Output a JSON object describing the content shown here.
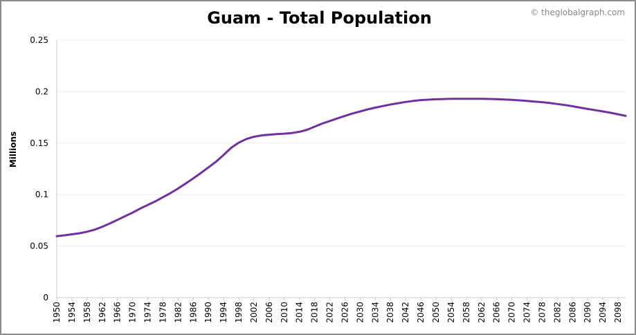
{
  "page": {
    "title": "Guam - Total Population",
    "credit": "© theglobalgraph.com"
  },
  "colors": {
    "line": "#7030a0",
    "axis": "#c8c8c8",
    "grid": "#eeeeee",
    "text": "#000000"
  },
  "chart_data": {
    "type": "line",
    "title": "Guam - Total Population",
    "ylabel": "Millions",
    "xlabel": "",
    "xlim": [
      1950,
      2100
    ],
    "ylim": [
      0,
      0.25
    ],
    "yticks": [
      0,
      0.05,
      0.1,
      0.15,
      0.2,
      0.25
    ],
    "ytick_labels": [
      "0",
      "0.05",
      "0.1",
      "0.15",
      "0.2",
      "0.25"
    ],
    "xticks": [
      1950,
      1954,
      1958,
      1962,
      1966,
      1970,
      1974,
      1978,
      1982,
      1986,
      1990,
      1994,
      1998,
      2002,
      2006,
      2010,
      2014,
      2018,
      2022,
      2026,
      2030,
      2034,
      2038,
      2042,
      2046,
      2050,
      2054,
      2058,
      2062,
      2066,
      2070,
      2074,
      2078,
      2082,
      2086,
      2090,
      2094,
      2098
    ],
    "grid": true,
    "series": [
      {
        "x": [
          1950,
          1952,
          1954,
          1956,
          1958,
          1960,
          1962,
          1964,
          1966,
          1968,
          1970,
          1972,
          1974,
          1976,
          1978,
          1980,
          1982,
          1984,
          1986,
          1988,
          1990,
          1992,
          1994,
          1996,
          1998,
          2000,
          2002,
          2004,
          2006,
          2008,
          2010,
          2012,
          2014,
          2016,
          2018,
          2020,
          2022,
          2024,
          2026,
          2028,
          2030,
          2032,
          2034,
          2036,
          2038,
          2040,
          2042,
          2044,
          2046,
          2048,
          2050,
          2052,
          2054,
          2056,
          2058,
          2060,
          2062,
          2064,
          2066,
          2068,
          2070,
          2072,
          2074,
          2076,
          2078,
          2080,
          2082,
          2084,
          2086,
          2088,
          2090,
          2092,
          2094,
          2096,
          2098,
          2100
        ],
        "values": [
          0.0596,
          0.0605,
          0.0615,
          0.0625,
          0.064,
          0.066,
          0.0688,
          0.072,
          0.0755,
          0.079,
          0.0825,
          0.0865,
          0.09,
          0.0935,
          0.0975,
          0.1015,
          0.106,
          0.1108,
          0.1158,
          0.121,
          0.1265,
          0.132,
          0.1385,
          0.1455,
          0.1505,
          0.154,
          0.1562,
          0.1575,
          0.1582,
          0.1588,
          0.1592,
          0.1598,
          0.161,
          0.163,
          0.166,
          0.169,
          0.1715,
          0.174,
          0.1765,
          0.1788,
          0.1808,
          0.1828,
          0.1845,
          0.186,
          0.1875,
          0.1888,
          0.19,
          0.191,
          0.1918,
          0.1922,
          0.1926,
          0.1928,
          0.193,
          0.193,
          0.193,
          0.193,
          0.193,
          0.1929,
          0.1927,
          0.1924,
          0.192,
          0.1915,
          0.191,
          0.1904,
          0.1898,
          0.189,
          0.188,
          0.187,
          0.1858,
          0.1845,
          0.1832,
          0.182,
          0.1808,
          0.1795,
          0.178,
          0.1765
        ]
      }
    ]
  }
}
